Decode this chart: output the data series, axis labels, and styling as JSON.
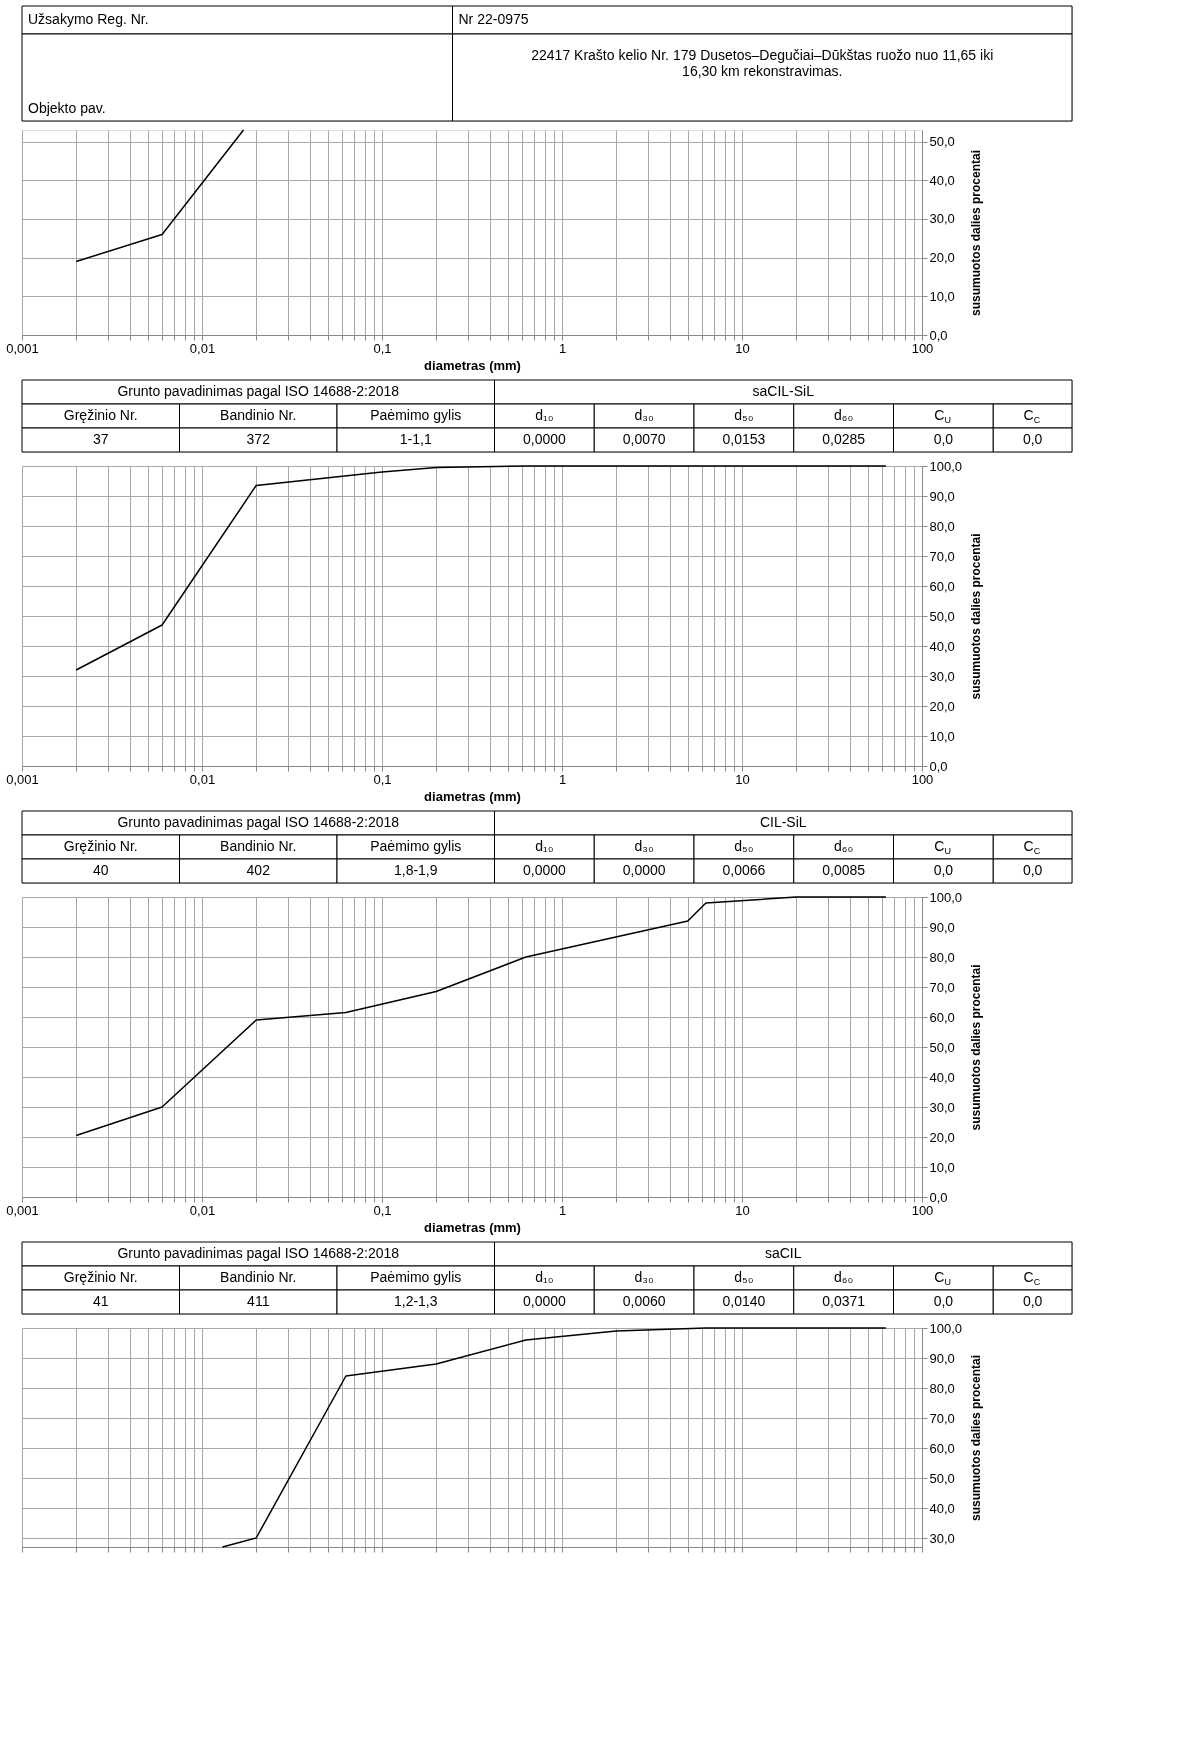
{
  "chart_data": [
    {
      "type": "other",
      "annotations": [
        "Užsakymo Reg. Nr.",
        "Nr 22-0975",
        "Objekto pav.",
        "22417   Krašto kelio Nr. 179 Dusetos–Degučiai–Dūkštas ruožo nuo 11,65 iki 16,30 km rekonstravimas."
      ]
    },
    {
      "type": "line",
      "xlabel": "diametras (mm)",
      "ylabel": "susumuotos dalies procentai",
      "log": "x",
      "grid": true,
      "marker": "none",
      "line_style": "solid",
      "x": [
        0.002,
        0.006,
        0.017
      ],
      "series": [
        {
          "color": "#000000",
          "values": [
            19,
            26,
            53
          ]
        }
      ],
      "xlim": [
        0.001,
        100
      ],
      "ylim": [
        0,
        53
      ],
      "xticks": [
        {
          "value": 0.001,
          "label": "0,001"
        },
        {
          "value": 0.002,
          "label": null
        },
        {
          "value": 0.003,
          "label": null
        },
        {
          "value": 0.004,
          "label": null
        },
        {
          "value": 0.005,
          "label": null
        },
        {
          "value": 0.006,
          "label": null
        },
        {
          "value": 0.007,
          "label": null
        },
        {
          "value": 0.008,
          "label": null
        },
        {
          "value": 0.009,
          "label": null
        },
        {
          "value": 0.01,
          "label": "0,01"
        },
        {
          "value": 0.02,
          "label": null
        },
        {
          "value": 0.03,
          "label": null
        },
        {
          "value": 0.04,
          "label": null
        },
        {
          "value": 0.05,
          "label": null
        },
        {
          "value": 0.06,
          "label": null
        },
        {
          "value": 0.07,
          "label": null
        },
        {
          "value": 0.08,
          "label": null
        },
        {
          "value": 0.09,
          "label": null
        },
        {
          "value": 0.1,
          "label": "0,1"
        },
        {
          "value": 0.2,
          "label": null
        },
        {
          "value": 0.3,
          "label": null
        },
        {
          "value": 0.4,
          "label": null
        },
        {
          "value": 0.5,
          "label": null
        },
        {
          "value": 0.6,
          "label": null
        },
        {
          "value": 0.7,
          "label": null
        },
        {
          "value": 0.8,
          "label": null
        },
        {
          "value": 0.9,
          "label": null
        },
        1,
        {
          "value": 2,
          "label": null
        },
        {
          "value": 3,
          "label": null
        },
        {
          "value": 4,
          "label": null
        },
        {
          "value": 5,
          "label": null
        },
        {
          "value": 6,
          "label": null
        },
        {
          "value": 7,
          "label": null
        },
        {
          "value": 8,
          "label": null
        },
        {
          "value": 9,
          "label": null
        },
        10,
        {
          "value": 20,
          "label": null
        },
        {
          "value": 30,
          "label": null
        },
        {
          "value": 40,
          "label": null
        },
        {
          "value": 50,
          "label": null
        },
        {
          "value": 60,
          "label": null
        },
        {
          "value": 70,
          "label": null
        },
        {
          "value": 80,
          "label": null
        },
        {
          "value": 90,
          "label": null
        },
        100
      ],
      "yticks": [
        {
          "value": 0,
          "label": "0,0"
        },
        {
          "value": 10,
          "label": "10,0"
        },
        {
          "value": 20,
          "label": "20,0"
        },
        {
          "value": 30,
          "label": "30,0"
        },
        {
          "value": 40,
          "label": "40,0"
        },
        {
          "value": 50,
          "label": "50,0"
        }
      ]
    },
    {
      "type": "other",
      "annotations": [
        "Grunto pavadinimas pagal ISO 14688-2:2018",
        "saCIL-SiL",
        "Gręžinio Nr.",
        "Bandinio Nr.",
        "Paėmimo gylis",
        "d₁₀",
        "d₃₀",
        "d₅₀",
        "d₆₀",
        "C$_{U}$",
        "C$_{C}$",
        "37",
        "372",
        "1-1,1",
        "0,0000",
        "0,0070",
        "0,0153",
        "0,0285",
        "0,0",
        "0,0"
      ]
    },
    {
      "type": "line",
      "xlabel": "diametras (mm)",
      "ylabel": "susumuotos dalies procentai",
      "log": "x",
      "grid": true,
      "marker": "none",
      "line_style": "solid",
      "x": [
        0.002,
        0.006,
        0.02,
        0.1,
        0.2,
        0.63,
        63
      ],
      "series": [
        {
          "color": "#000000",
          "values": [
            32,
            47,
            93.5,
            98,
            99.5,
            100,
            100
          ]
        }
      ],
      "xlim": [
        0.001,
        100
      ],
      "ylim": [
        0,
        100
      ],
      "xticks": [
        {
          "value": 0.001,
          "label": "0,001"
        },
        {
          "value": 0.002,
          "label": null
        },
        {
          "value": 0.003,
          "label": null
        },
        {
          "value": 0.004,
          "label": null
        },
        {
          "value": 0.005,
          "label": null
        },
        {
          "value": 0.006,
          "label": null
        },
        {
          "value": 0.007,
          "label": null
        },
        {
          "value": 0.008,
          "label": null
        },
        {
          "value": 0.009,
          "label": null
        },
        {
          "value": 0.01,
          "label": "0,01"
        },
        {
          "value": 0.02,
          "label": null
        },
        {
          "value": 0.03,
          "label": null
        },
        {
          "value": 0.04,
          "label": null
        },
        {
          "value": 0.05,
          "label": null
        },
        {
          "value": 0.06,
          "label": null
        },
        {
          "value": 0.07,
          "label": null
        },
        {
          "value": 0.08,
          "label": null
        },
        {
          "value": 0.09,
          "label": null
        },
        {
          "value": 0.1,
          "label": "0,1"
        },
        {
          "value": 0.2,
          "label": null
        },
        {
          "value": 0.3,
          "label": null
        },
        {
          "value": 0.4,
          "label": null
        },
        {
          "value": 0.5,
          "label": null
        },
        {
          "value": 0.6,
          "label": null
        },
        {
          "value": 0.7,
          "label": null
        },
        {
          "value": 0.8,
          "label": null
        },
        {
          "value": 0.9,
          "label": null
        },
        1,
        {
          "value": 2,
          "label": null
        },
        {
          "value": 3,
          "label": null
        },
        {
          "value": 4,
          "label": null
        },
        {
          "value": 5,
          "label": null
        },
        {
          "value": 6,
          "label": null
        },
        {
          "value": 7,
          "label": null
        },
        {
          "value": 8,
          "label": null
        },
        {
          "value": 9,
          "label": null
        },
        10,
        {
          "value": 20,
          "label": null
        },
        {
          "value": 30,
          "label": null
        },
        {
          "value": 40,
          "label": null
        },
        {
          "value": 50,
          "label": null
        },
        {
          "value": 60,
          "label": null
        },
        {
          "value": 70,
          "label": null
        },
        {
          "value": 80,
          "label": null
        },
        {
          "value": 90,
          "label": null
        },
        100
      ],
      "yticks": [
        {
          "value": 0,
          "label": "0,0"
        },
        {
          "value": 10,
          "label": "10,0"
        },
        {
          "value": 20,
          "label": "20,0"
        },
        {
          "value": 30,
          "label": "30,0"
        },
        {
          "value": 40,
          "label": "40,0"
        },
        {
          "value": 50,
          "label": "50,0"
        },
        {
          "value": 60,
          "label": "60,0"
        },
        {
          "value": 70,
          "label": "70,0"
        },
        {
          "value": 80,
          "label": "80,0"
        },
        {
          "value": 90,
          "label": "90,0"
        },
        {
          "value": 100,
          "label": "100,0"
        }
      ]
    },
    {
      "type": "other",
      "annotations": [
        "Grunto pavadinimas pagal ISO 14688-2:2018",
        "CIL-SiL",
        "Gręžinio Nr.",
        "Bandinio Nr.",
        "Paėmimo gylis",
        "d₁₀",
        "d₃₀",
        "d₅₀",
        "d₆₀",
        "C$_{U}$",
        "C$_{C}$",
        "40",
        "402",
        "1,8-1,9",
        "0,0000",
        "0,0000",
        "0,0066",
        "0,0085",
        "0,0",
        "0,0"
      ]
    },
    {
      "type": "line",
      "xlabel": "diametras (mm)",
      "ylabel": "susumuotos dalies procentai",
      "log": "x",
      "grid": true,
      "marker": "none",
      "line_style": "solid",
      "x": [
        0.002,
        0.006,
        0.02,
        0.063,
        0.2,
        0.63,
        5,
        6.3,
        20,
        63
      ],
      "series": [
        {
          "color": "#000000",
          "values": [
            20.5,
            30,
            59,
            61.5,
            68.5,
            80,
            92,
            98,
            100,
            100
          ]
        }
      ],
      "xlim": [
        0.001,
        100
      ],
      "ylim": [
        0,
        100
      ],
      "xticks": [
        {
          "value": 0.001,
          "label": "0,001"
        },
        {
          "value": 0.002,
          "label": null
        },
        {
          "value": 0.003,
          "label": null
        },
        {
          "value": 0.004,
          "label": null
        },
        {
          "value": 0.005,
          "label": null
        },
        {
          "value": 0.006,
          "label": null
        },
        {
          "value": 0.007,
          "label": null
        },
        {
          "value": 0.008,
          "label": null
        },
        {
          "value": 0.009,
          "label": null
        },
        {
          "value": 0.01,
          "label": "0,01"
        },
        {
          "value": 0.02,
          "label": null
        },
        {
          "value": 0.03,
          "label": null
        },
        {
          "value": 0.04,
          "label": null
        },
        {
          "value": 0.05,
          "label": null
        },
        {
          "value": 0.06,
          "label": null
        },
        {
          "value": 0.07,
          "label": null
        },
        {
          "value": 0.08,
          "label": null
        },
        {
          "value": 0.09,
          "label": null
        },
        {
          "value": 0.1,
          "label": "0,1"
        },
        {
          "value": 0.2,
          "label": null
        },
        {
          "value": 0.3,
          "label": null
        },
        {
          "value": 0.4,
          "label": null
        },
        {
          "value": 0.5,
          "label": null
        },
        {
          "value": 0.6,
          "label": null
        },
        {
          "value": 0.7,
          "label": null
        },
        {
          "value": 0.8,
          "label": null
        },
        {
          "value": 0.9,
          "label": null
        },
        1,
        {
          "value": 2,
          "label": null
        },
        {
          "value": 3,
          "label": null
        },
        {
          "value": 4,
          "label": null
        },
        {
          "value": 5,
          "label": null
        },
        {
          "value": 6,
          "label": null
        },
        {
          "value": 7,
          "label": null
        },
        {
          "value": 8,
          "label": null
        },
        {
          "value": 9,
          "label": null
        },
        10,
        {
          "value": 20,
          "label": null
        },
        {
          "value": 30,
          "label": null
        },
        {
          "value": 40,
          "label": null
        },
        {
          "value": 50,
          "label": null
        },
        {
          "value": 60,
          "label": null
        },
        {
          "value": 70,
          "label": null
        },
        {
          "value": 80,
          "label": null
        },
        {
          "value": 90,
          "label": null
        },
        100
      ],
      "yticks": [
        {
          "value": 0,
          "label": "0,0"
        },
        {
          "value": 10,
          "label": "10,0"
        },
        {
          "value": 20,
          "label": "20,0"
        },
        {
          "value": 30,
          "label": "30,0"
        },
        {
          "value": 40,
          "label": "40,0"
        },
        {
          "value": 50,
          "label": "50,0"
        },
        {
          "value": 60,
          "label": "60,0"
        },
        {
          "value": 70,
          "label": "70,0"
        },
        {
          "value": 80,
          "label": "80,0"
        },
        {
          "value": 90,
          "label": "90,0"
        },
        {
          "value": 100,
          "label": "100,0"
        }
      ]
    },
    {
      "type": "other",
      "annotations": [
        "Grunto pavadinimas pagal ISO 14688-2:2018",
        "saCIL",
        "Gręžinio Nr.",
        "Bandinio Nr.",
        "Paėmimo gylis",
        "d₁₀",
        "d₃₀",
        "d₅₀",
        "d₆₀",
        "C$_{U}$",
        "C$_{C}$",
        "41",
        "411",
        "1,2-1,3",
        "0,0000",
        "0,0060",
        "0,0140",
        "0,0371",
        "0,0",
        "0,0"
      ]
    },
    {
      "type": "line",
      "ylabel": "susumuotos dalies procentai",
      "log": "x",
      "grid": true,
      "marker": "none",
      "line_style": "solid",
      "tick_labels": "y",
      "x": [
        0.013,
        0.02,
        0.063,
        0.2,
        0.63,
        2,
        6.3,
        63
      ],
      "series": [
        {
          "color": "#000000",
          "values": [
            27,
            30,
            84,
            88,
            96,
            99,
            100,
            100
          ]
        }
      ],
      "xlim": [
        0.001,
        100
      ],
      "ylim": [
        27,
        100
      ],
      "xticks": [
        {
          "value": 0.001,
          "label": null
        },
        {
          "value": 0.002,
          "label": null
        },
        {
          "value": 0.003,
          "label": null
        },
        {
          "value": 0.004,
          "label": null
        },
        {
          "value": 0.005,
          "label": null
        },
        {
          "value": 0.006,
          "label": null
        },
        {
          "value": 0.007,
          "label": null
        },
        {
          "value": 0.008,
          "label": null
        },
        {
          "value": 0.009,
          "label": null
        },
        {
          "value": 0.01,
          "label": null
        },
        {
          "value": 0.02,
          "label": null
        },
        {
          "value": 0.03,
          "label": null
        },
        {
          "value": 0.04,
          "label": null
        },
        {
          "value": 0.05,
          "label": null
        },
        {
          "value": 0.06,
          "label": null
        },
        {
          "value": 0.07,
          "label": null
        },
        {
          "value": 0.08,
          "label": null
        },
        {
          "value": 0.09,
          "label": null
        },
        {
          "value": 0.1,
          "label": null
        },
        {
          "value": 0.2,
          "label": null
        },
        {
          "value": 0.3,
          "label": null
        },
        {
          "value": 0.4,
          "label": null
        },
        {
          "value": 0.5,
          "label": null
        },
        {
          "value": 0.6,
          "label": null
        },
        {
          "value": 0.7,
          "label": null
        },
        {
          "value": 0.8,
          "label": null
        },
        {
          "value": 0.9,
          "label": null
        },
        {
          "value": 1,
          "label": null
        },
        {
          "value": 2,
          "label": null
        },
        {
          "value": 3,
          "label": null
        },
        {
          "value": 4,
          "label": null
        },
        {
          "value": 5,
          "label": null
        },
        {
          "value": 6,
          "label": null
        },
        {
          "value": 7,
          "label": null
        },
        {
          "value": 8,
          "label": null
        },
        {
          "value": 9,
          "label": null
        },
        {
          "value": 10,
          "label": null
        },
        {
          "value": 20,
          "label": null
        },
        {
          "value": 30,
          "label": null
        },
        {
          "value": 40,
          "label": null
        },
        {
          "value": 50,
          "label": null
        },
        {
          "value": 60,
          "label": null
        },
        {
          "value": 70,
          "label": null
        },
        {
          "value": 80,
          "label": null
        },
        {
          "value": 90,
          "label": null
        },
        {
          "value": 100,
          "label": null
        }
      ],
      "yticks": [
        {
          "value": 30,
          "label": "30,0"
        },
        {
          "value": 40,
          "label": "40,0"
        },
        {
          "value": 50,
          "label": "50,0"
        },
        {
          "value": 60,
          "label": "60,0"
        },
        {
          "value": 70,
          "label": "70,0"
        },
        {
          "value": 80,
          "label": "80,0"
        },
        {
          "value": 90,
          "label": "90,0"
        },
        {
          "value": 100,
          "label": "100,0"
        }
      ]
    }
  ]
}
